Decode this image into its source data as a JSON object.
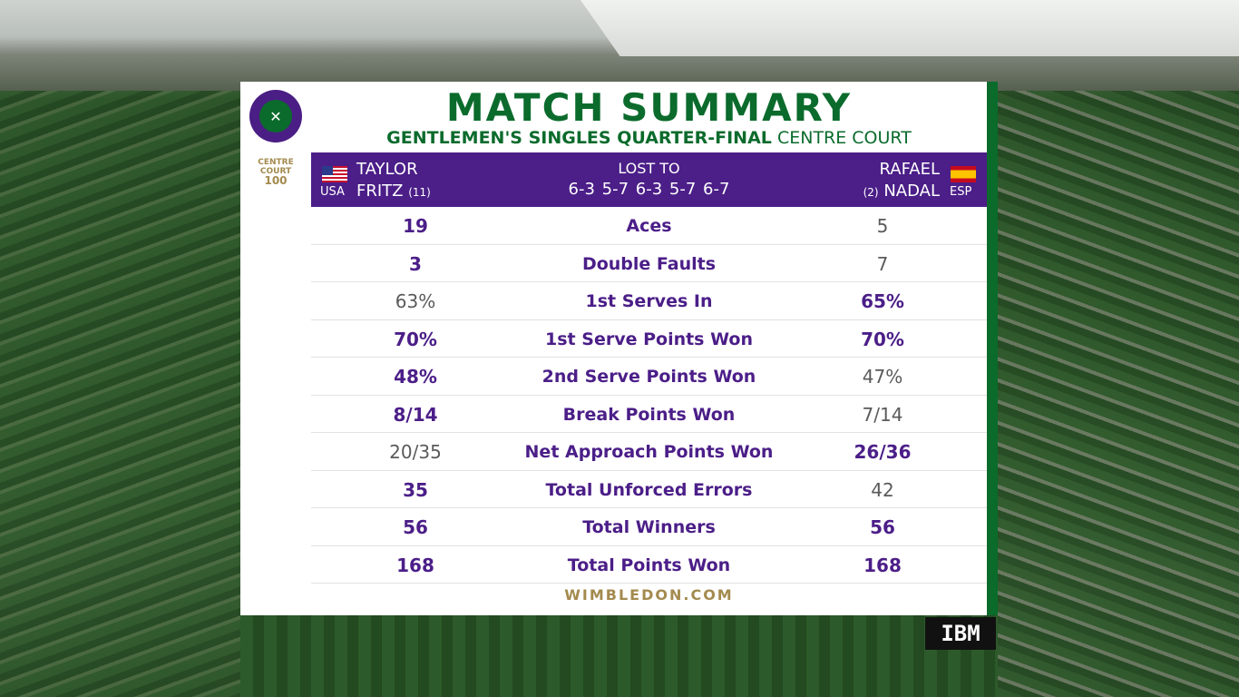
{
  "logo": {
    "text": "THE CHAMPIONSHIPS WIMBLEDON",
    "cc_line1": "CENTRE",
    "cc_line2": "COURT",
    "cc_num": "100"
  },
  "title": "MATCH SUMMARY",
  "subtitle": {
    "event": "GENTLEMEN'S SINGLES QUARTER-FINAL",
    "court": "CENTRE COURT"
  },
  "header": {
    "player1": {
      "first": "TAYLOR",
      "last": "FRITZ",
      "seed": "(11)",
      "country": "USA"
    },
    "player2": {
      "first": "RAFAEL",
      "last": "NADAL",
      "seed": "(2)",
      "country": "ESP"
    },
    "result_label": "LOST TO",
    "score": "6-3 5-7 6-3 5-7 6-7"
  },
  "stats": [
    {
      "label": "Aces",
      "p1": "19",
      "p2": "5",
      "p1_win": true,
      "p2_win": false
    },
    {
      "label": "Double Faults",
      "p1": "3",
      "p2": "7",
      "p1_win": true,
      "p2_win": false
    },
    {
      "label": "1st Serves In",
      "p1": "63%",
      "p2": "65%",
      "p1_win": false,
      "p2_win": true
    },
    {
      "label": "1st Serve Points Won",
      "p1": "70%",
      "p2": "70%",
      "p1_win": true,
      "p2_win": true
    },
    {
      "label": "2nd Serve Points Won",
      "p1": "48%",
      "p2": "47%",
      "p1_win": true,
      "p2_win": false
    },
    {
      "label": "Break Points Won",
      "p1": "8/14",
      "p2": "7/14",
      "p1_win": true,
      "p2_win": false
    },
    {
      "label": "Net Approach Points Won",
      "p1": "20/35",
      "p2": "26/36",
      "p1_win": false,
      "p2_win": true
    },
    {
      "label": "Total Unforced Errors",
      "p1": "35",
      "p2": "42",
      "p1_win": true,
      "p2_win": false
    },
    {
      "label": "Total Winners",
      "p1": "56",
      "p2": "56",
      "p1_win": true,
      "p2_win": true
    },
    {
      "label": "Total Points Won",
      "p1": "168",
      "p2": "168",
      "p1_win": true,
      "p2_win": true
    }
  ],
  "footer": "WIMBLEDON.COM",
  "sponsor": "IBM",
  "colors": {
    "purple": "#4b1e88",
    "green": "#0b6b2c",
    "gold": "#a38a4e"
  }
}
